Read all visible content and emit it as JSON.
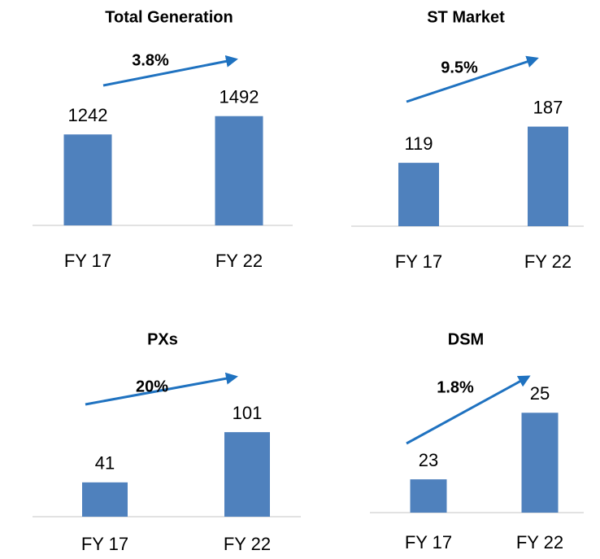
{
  "chart_data": [
    {
      "type": "bar",
      "title": "Total Generation",
      "annotation": "3.8%",
      "categories": [
        "FY 17",
        "FY 22"
      ],
      "values": [
        1242,
        1492
      ],
      "color": "#4f81bd",
      "ylim": [
        0,
        2000
      ]
    },
    {
      "type": "bar",
      "title": "ST Market",
      "annotation": "9.5%",
      "categories": [
        "FY 17",
        "FY 22"
      ],
      "values": [
        119,
        187
      ],
      "color": "#4f81bd",
      "ylim": [
        0,
        275
      ]
    },
    {
      "type": "bar",
      "title": "PXs",
      "annotation": "20%",
      "categories": [
        "FY 17",
        "FY 22"
      ],
      "values": [
        41,
        101
      ],
      "color": "#4f81bd",
      "ylim": [
        0,
        175
      ]
    },
    {
      "type": "bar",
      "title": "DSM",
      "annotation": "1.8%",
      "categories": [
        "FY 17",
        "FY 22"
      ],
      "values": [
        23,
        25
      ],
      "color": "#4f81bd",
      "ylim": [
        22,
        26.4
      ]
    }
  ]
}
